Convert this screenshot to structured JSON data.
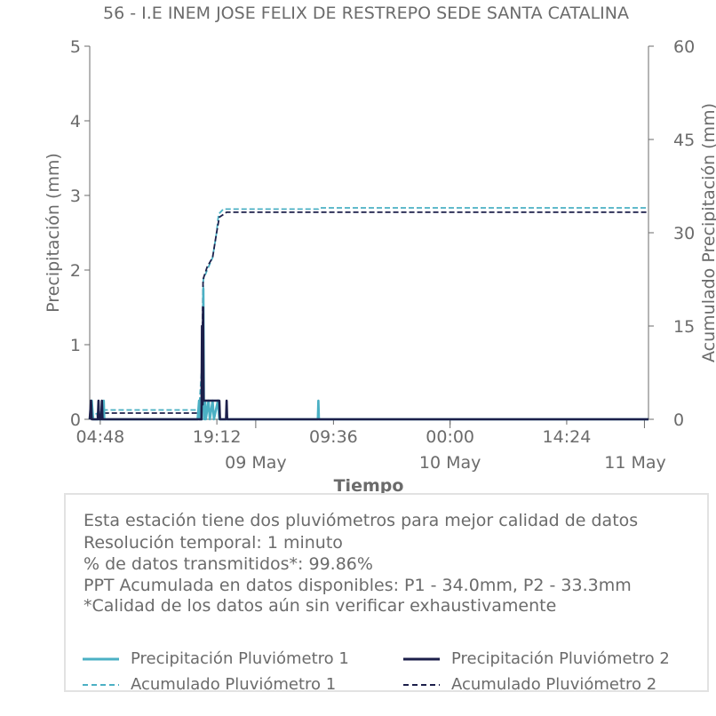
{
  "chart_data": {
    "type": "line",
    "title": "56 - I.E INEM JOSE FELIX DE RESTREPO SEDE SANTA CATALINA",
    "xlabel": "Tiempo",
    "ylabel": "Precipitación (mm)",
    "y2label": "Acumulado Precipitación (mm)",
    "ylim": [
      0,
      5
    ],
    "y2lim": [
      0,
      60
    ],
    "yticks": [
      "0",
      "1",
      "2",
      "3",
      "4",
      "5"
    ],
    "y2ticks": [
      "0",
      "15",
      "30",
      "45",
      "60"
    ],
    "xlim": [
      "2024-05-08 03:30",
      "2024-05-11 00:30"
    ],
    "xticks_time": [
      {
        "x": "2024-05-08 04:48",
        "label": "04:48"
      },
      {
        "x": "2024-05-08 19:12",
        "label": "19:12"
      },
      {
        "x": "2024-05-09 09:36",
        "label": "09:36"
      },
      {
        "x": "2024-05-10 00:00",
        "label": "00:00"
      },
      {
        "x": "2024-05-10 14:24",
        "label": "14:24"
      }
    ],
    "xticks_date": [
      {
        "x": "2024-05-09 00:00",
        "label": "09 May"
      },
      {
        "x": "2024-05-10 00:00",
        "label": "10 May"
      },
      {
        "x": "2024-05-11 00:00",
        "label": "11 May"
      }
    ],
    "grid": false,
    "series": [
      {
        "name": "Precipitación Pluviómetro 1",
        "axis": "left",
        "style": "solid",
        "color": "#4bb0c4",
        "points": [
          [
            "2024-05-08 03:30",
            0
          ],
          [
            "2024-05-08 03:45",
            0.25
          ],
          [
            "2024-05-08 03:55",
            0
          ],
          [
            "2024-05-08 05:10",
            0
          ],
          [
            "2024-05-08 05:14",
            0.25
          ],
          [
            "2024-05-08 05:18",
            0
          ],
          [
            "2024-05-08 16:50",
            0
          ],
          [
            "2024-05-08 17:00",
            0.25
          ],
          [
            "2024-05-08 17:05",
            0
          ],
          [
            "2024-05-08 17:20",
            0
          ],
          [
            "2024-05-08 17:25",
            1.25
          ],
          [
            "2024-05-08 17:28",
            0.3
          ],
          [
            "2024-05-08 17:32",
            1.75
          ],
          [
            "2024-05-08 17:36",
            0.25
          ],
          [
            "2024-05-08 17:40",
            0
          ],
          [
            "2024-05-08 17:45",
            0.25
          ],
          [
            "2024-05-08 17:50",
            0
          ],
          [
            "2024-05-08 18:10",
            0.25
          ],
          [
            "2024-05-08 18:20",
            0
          ],
          [
            "2024-05-08 18:40",
            0.25
          ],
          [
            "2024-05-08 18:50",
            0
          ],
          [
            "2024-05-08 19:20",
            0.25
          ],
          [
            "2024-05-08 19:30",
            0
          ],
          [
            "2024-05-09 07:40",
            0
          ],
          [
            "2024-05-09 07:44",
            0.25
          ],
          [
            "2024-05-09 07:48",
            0
          ],
          [
            "2024-05-11 00:30",
            0
          ]
        ]
      },
      {
        "name": "Precipitación Pluviómetro 2",
        "axis": "left",
        "style": "solid",
        "color": "#1c1f4a",
        "points": [
          [
            "2024-05-08 03:30",
            0
          ],
          [
            "2024-05-08 03:40",
            0.25
          ],
          [
            "2024-05-08 03:45",
            0
          ],
          [
            "2024-05-08 04:30",
            0
          ],
          [
            "2024-05-08 04:35",
            0.25
          ],
          [
            "2024-05-08 04:40",
            0
          ],
          [
            "2024-05-08 04:55",
            0
          ],
          [
            "2024-05-08 05:00",
            0.25
          ],
          [
            "2024-05-08 05:05",
            0
          ],
          [
            "2024-05-08 17:18",
            0
          ],
          [
            "2024-05-08 17:22",
            1.25
          ],
          [
            "2024-05-08 17:26",
            0.2
          ],
          [
            "2024-05-08 17:30",
            1.5
          ],
          [
            "2024-05-08 17:34",
            0.25
          ],
          [
            "2024-05-08 17:40",
            0.25
          ],
          [
            "2024-05-08 17:50",
            0.25
          ],
          [
            "2024-05-08 18:00",
            0.25
          ],
          [
            "2024-05-08 18:10",
            0.25
          ],
          [
            "2024-05-08 18:20",
            0.25
          ],
          [
            "2024-05-08 18:30",
            0.25
          ],
          [
            "2024-05-08 18:40",
            0.25
          ],
          [
            "2024-05-08 18:50",
            0.25
          ],
          [
            "2024-05-08 19:00",
            0.25
          ],
          [
            "2024-05-08 19:10",
            0.25
          ],
          [
            "2024-05-08 19:20",
            0.25
          ],
          [
            "2024-05-08 19:30",
            0.25
          ],
          [
            "2024-05-08 19:35",
            0
          ],
          [
            "2024-05-08 20:20",
            0
          ],
          [
            "2024-05-08 20:24",
            0.25
          ],
          [
            "2024-05-08 20:28",
            0
          ],
          [
            "2024-05-11 00:30",
            0
          ]
        ]
      },
      {
        "name": "Acumulado Pluviómetro 1",
        "axis": "right",
        "style": "dashed",
        "color": "#4bb0c4",
        "points": [
          [
            "2024-05-08 03:30",
            0
          ],
          [
            "2024-05-08 03:45",
            0.5
          ],
          [
            "2024-05-08 05:14",
            1.5
          ],
          [
            "2024-05-08 17:00",
            1.5
          ],
          [
            "2024-05-08 17:25",
            10
          ],
          [
            "2024-05-08 17:32",
            22.5
          ],
          [
            "2024-05-08 18:00",
            24
          ],
          [
            "2024-05-08 18:40",
            26
          ],
          [
            "2024-05-08 19:10",
            30
          ],
          [
            "2024-05-08 19:25",
            33
          ],
          [
            "2024-05-08 20:00",
            33.8
          ],
          [
            "2024-05-09 07:44",
            33.8
          ],
          [
            "2024-05-09 07:50",
            34.0
          ],
          [
            "2024-05-11 00:30",
            34.0
          ]
        ]
      },
      {
        "name": "Acumulado Pluviómetro 2",
        "axis": "right",
        "style": "dashed",
        "color": "#1c1f4a",
        "points": [
          [
            "2024-05-08 03:30",
            0
          ],
          [
            "2024-05-08 03:40",
            0.3
          ],
          [
            "2024-05-08 04:35",
            0.6
          ],
          [
            "2024-05-08 05:00",
            1.0
          ],
          [
            "2024-05-08 17:18",
            1.0
          ],
          [
            "2024-05-08 17:22",
            9
          ],
          [
            "2024-05-08 17:30",
            22.5
          ],
          [
            "2024-05-08 18:00",
            24.5
          ],
          [
            "2024-05-08 18:40",
            26
          ],
          [
            "2024-05-08 19:10",
            30
          ],
          [
            "2024-05-08 19:30",
            32.5
          ],
          [
            "2024-05-08 20:24",
            33.3
          ],
          [
            "2024-05-11 00:30",
            33.3
          ]
        ]
      }
    ]
  },
  "info": {
    "line1": "Esta estación tiene dos pluviómetros para mejor calidad de datos",
    "line2": "Resolución temporal: 1 minuto",
    "line3": "% de datos transmitidos*: 99.86%",
    "line4": "PPT Acumulada en datos disponibles: P1 - 34.0mm, P2 - 33.3mm",
    "line5": "*Calidad de los datos aún sin verificar exhaustivamente"
  },
  "legend": {
    "p1": "Precipitación Pluviómetro 1",
    "p2": "Precipitación Pluviómetro 2",
    "a1": "Acumulado Pluviómetro 1",
    "a2": "Acumulado Pluviómetro 2",
    "color1": "#4bb0c4",
    "color2": "#1c1f4a"
  },
  "colors": {
    "axis": "#6b6b6b",
    "text": "#6b6b6b"
  }
}
